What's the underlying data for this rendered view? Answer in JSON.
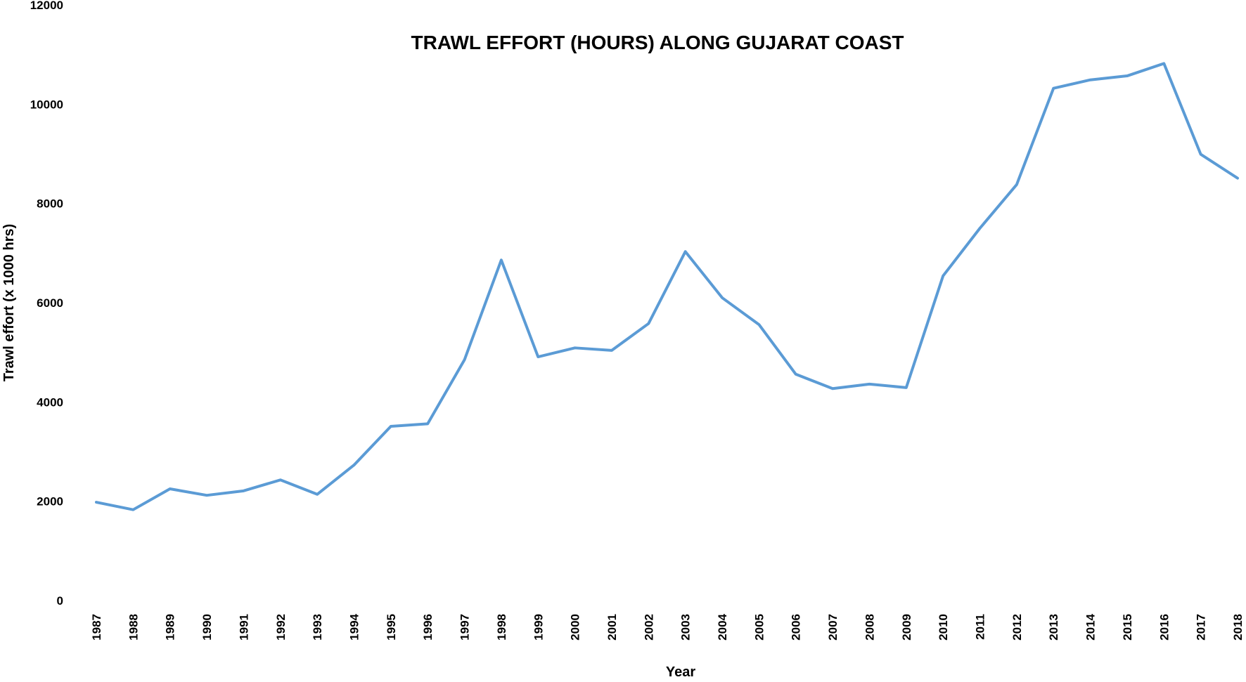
{
  "chart_data": {
    "type": "line",
    "title": "TRAWL EFFORT (HOURS) ALONG GUJARAT COAST",
    "xlabel": "Year",
    "ylabel": "Trawl effort (x 1000 hrs)",
    "ylim": [
      0,
      12000
    ],
    "yticks": [
      0,
      2000,
      4000,
      6000,
      8000,
      10000,
      12000
    ],
    "grid": false,
    "legend": "none",
    "line_color": "#5B9BD5",
    "categories": [
      "1987",
      "1988",
      "1989",
      "1990",
      "1991",
      "1992",
      "1993",
      "1994",
      "1995",
      "1996",
      "1997",
      "1998",
      "1999",
      "2000",
      "2001",
      "2002",
      "2003",
      "2004",
      "2005",
      "2006",
      "2007",
      "2008",
      "2009",
      "2010",
      "2011",
      "2012",
      "2013",
      "2014",
      "2015",
      "2016",
      "2017",
      "2018"
    ],
    "series": [
      {
        "values": [
          1980,
          1830,
          2250,
          2120,
          2210,
          2430,
          2140,
          2730,
          3510,
          3560,
          4850,
          6860,
          4910,
          5090,
          5040,
          5580,
          7030,
          6100,
          5560,
          4560,
          4270,
          4360,
          4290,
          6540,
          7500,
          8380,
          10320,
          10490,
          10570,
          10820,
          8990,
          8510
        ]
      }
    ]
  }
}
